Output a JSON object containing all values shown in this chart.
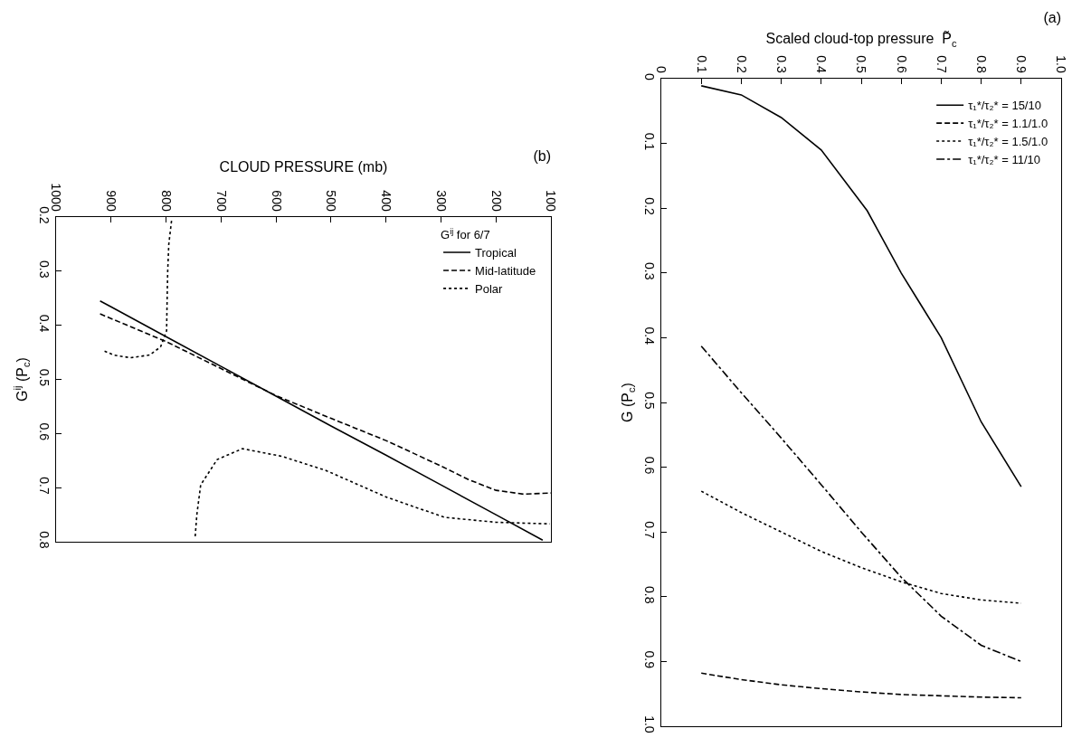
{
  "chart_data": [
    {
      "type": "line",
      "title": "(a)",
      "xlabel": "Scaled cloud-top pressure  P̃$_{c}$",
      "ylabel": "G (P$_{c}$)",
      "xlim": [
        0,
        1
      ],
      "xticks": [
        0,
        0.1,
        0.2,
        0.3,
        0.4,
        0.5,
        0.6,
        0.7,
        0.8,
        0.9,
        {
          "value": 1,
          "label": "1.0"
        }
      ],
      "ylim": [
        1,
        0
      ],
      "yticks": [
        0,
        0.1,
        0.2,
        0.3,
        0.4,
        0.5,
        0.6,
        0.7,
        0.8,
        0.9,
        {
          "value": 1,
          "label": "1.0"
        }
      ],
      "grid": false,
      "legend": "top right",
      "marker": "none",
      "series": [
        {
          "name": "τ₁*/τ₂* = 15/10",
          "color": "#000000",
          "line_style": "solid",
          "x": [
            0.1,
            0.2,
            0.3,
            0.4,
            0.515,
            0.6,
            0.7,
            0.8,
            0.9
          ],
          "values": [
            0.011,
            0.025,
            0.06,
            0.11,
            0.204,
            0.3,
            0.4,
            0.53,
            0.63
          ]
        },
        {
          "name": "τ₁*/τ₂* = 1.1/1.0",
          "color": "#000000",
          "line_style": "dashed",
          "x": [
            0.1,
            0.2,
            0.3,
            0.4,
            0.5,
            0.6,
            0.7,
            0.8,
            0.9
          ],
          "values": [
            0.918,
            0.928,
            0.936,
            0.942,
            0.947,
            0.951,
            0.953,
            0.955,
            0.956
          ]
        },
        {
          "name": "τ₁*/τ₂* = 1.5/1.0",
          "color": "#000000",
          "line_style": "dotted",
          "x": [
            0.1,
            0.2,
            0.3,
            0.4,
            0.5,
            0.6,
            0.7,
            0.8,
            0.9
          ],
          "values": [
            0.637,
            0.67,
            0.7,
            0.73,
            0.755,
            0.777,
            0.795,
            0.805,
            0.81
          ]
        },
        {
          "name": "τ₁*/τ₂* = 11/10",
          "color": "#000000",
          "line_style": "dashdot",
          "x": [
            0.1,
            0.2,
            0.3,
            0.4,
            0.5,
            0.6,
            0.7,
            0.8,
            0.9
          ],
          "values": [
            0.413,
            0.485,
            0.555,
            0.627,
            0.7,
            0.77,
            0.83,
            0.875,
            0.9
          ]
        }
      ]
    },
    {
      "type": "line",
      "title": "(b)",
      "xlabel": "CLOUD PRESSURE (mb)",
      "ylabel": "G$^{ij}$ (P$_{c}$)",
      "legend_title": "G$^{ij}$ for 6/7",
      "xlim": [
        1000,
        100
      ],
      "xticks": [
        100,
        200,
        300,
        400,
        500,
        600,
        700,
        800,
        900,
        1000
      ],
      "ylim": [
        0.8,
        0.2
      ],
      "yticks": [
        0.2,
        0.3,
        0.4,
        0.5,
        0.6,
        0.7,
        0.8
      ],
      "grid": false,
      "legend": "top right",
      "marker": "none",
      "series": [
        {
          "name": "Tropical",
          "color": "#000000",
          "line_style": "solid",
          "x": [
            920,
            900,
            800,
            700,
            600,
            500,
            400,
            300,
            200,
            115
          ],
          "values": [
            0.355,
            0.366,
            0.421,
            0.476,
            0.531,
            0.586,
            0.64,
            0.695,
            0.75,
            0.797
          ]
        },
        {
          "name": "Mid-latitude",
          "color": "#000000",
          "line_style": "dashed",
          "x": [
            920,
            800,
            700,
            600,
            500,
            400,
            300,
            250,
            200,
            150,
            100
          ],
          "values": [
            0.379,
            0.43,
            0.48,
            0.53,
            0.572,
            0.613,
            0.66,
            0.685,
            0.705,
            0.712,
            0.71
          ]
        },
        {
          "name": "Polar",
          "color": "#000000",
          "line_style": "dotted",
          "x": [
            790,
            795,
            797,
            798,
            799,
            810,
            830,
            865,
            895,
            916,
            null,
            747,
            744,
            737,
            707,
            661,
            590,
            510,
            398,
            293,
            200,
            102
          ],
          "values": [
            0.207,
            0.25,
            0.3,
            0.35,
            0.41,
            0.44,
            0.455,
            0.46,
            0.455,
            0.446,
            null,
            0.79,
            0.75,
            0.695,
            0.648,
            0.628,
            0.642,
            0.668,
            0.718,
            0.755,
            0.764,
            0.767
          ]
        }
      ]
    }
  ]
}
